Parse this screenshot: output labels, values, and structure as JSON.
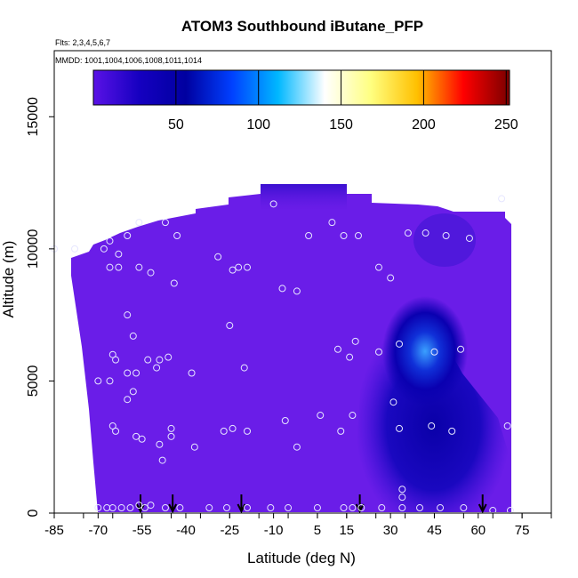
{
  "chart_data": {
    "type": "heatmap",
    "title": "ATOM3 Southbound iButane_PFP",
    "notes": [
      "Flts: 2,3,4,5,6,7",
      "MMDD: 1001,1004,1006,1008,1011,1014"
    ],
    "xlabel": "Latitude (deg N)",
    "ylabel": "Altitude (m)",
    "xlim": [
      -85,
      85
    ],
    "ylim": [
      0,
      17500
    ],
    "x_ticks": [
      -85,
      -70,
      -55,
      -40,
      -25,
      -10,
      5,
      15,
      30,
      45,
      60,
      75
    ],
    "y_ticks": [
      0,
      5000,
      10000,
      15000
    ],
    "colorbar": {
      "range": [
        0,
        252
      ],
      "ticks": [
        50,
        100,
        150,
        200,
        250
      ],
      "colors": [
        "#5a12e6",
        "#1500c0",
        "#0000a0",
        "#0040ff",
        "#00b8ff",
        "#ffffff",
        "#ffff80",
        "#ffc000",
        "#ff0000",
        "#7a0000"
      ]
    },
    "field_color": "#6a1de8",
    "legend_placement": "top",
    "flight_latitudes": [
      -55.5,
      -44.5,
      -21,
      19.5,
      61.5
    ],
    "samples": [
      [
        -70,
        200
      ],
      [
        -67,
        200
      ],
      [
        -65,
        200
      ],
      [
        -62,
        200
      ],
      [
        -59,
        200
      ],
      [
        -56,
        300
      ],
      [
        -52,
        300
      ],
      [
        -47,
        200
      ],
      [
        -42,
        200
      ],
      [
        -32,
        200
      ],
      [
        -26,
        200
      ],
      [
        -19,
        200
      ],
      [
        -11,
        200
      ],
      [
        -5,
        200
      ],
      [
        5,
        200
      ],
      [
        14,
        200
      ],
      [
        17,
        200
      ],
      [
        20,
        200
      ],
      [
        27,
        200
      ],
      [
        34,
        200
      ],
      [
        40,
        200
      ],
      [
        47,
        200
      ],
      [
        55,
        200
      ],
      [
        65,
        100
      ],
      [
        71,
        100
      ],
      [
        -54,
        200
      ],
      [
        34,
        600
      ],
      [
        34,
        900
      ],
      [
        -85,
        10000
      ],
      [
        -78,
        10000
      ],
      [
        -68,
        10000
      ],
      [
        -66,
        10300
      ],
      [
        -63,
        9800
      ],
      [
        -60,
        10500
      ],
      [
        -56,
        11000
      ],
      [
        -47,
        11000
      ],
      [
        -43,
        10500
      ],
      [
        -29,
        9700
      ],
      [
        -19,
        9300
      ],
      [
        -10,
        11700
      ],
      [
        2,
        10500
      ],
      [
        10,
        11000
      ],
      [
        14,
        10500
      ],
      [
        19,
        10500
      ],
      [
        26,
        9300
      ],
      [
        30,
        8900
      ],
      [
        36,
        10600
      ],
      [
        42,
        10600
      ],
      [
        49,
        10500
      ],
      [
        57,
        10400
      ],
      [
        68,
        11900
      ],
      [
        -66,
        9300
      ],
      [
        -63,
        9300
      ],
      [
        -56,
        9300
      ],
      [
        -52,
        9100
      ],
      [
        -44,
        8700
      ],
      [
        -24,
        9200
      ],
      [
        -22,
        9300
      ],
      [
        -7,
        8500
      ],
      [
        -2,
        8400
      ],
      [
        -60,
        7500
      ],
      [
        -58,
        6700
      ],
      [
        -65,
        6000
      ],
      [
        -64,
        5800
      ],
      [
        -60,
        5300
      ],
      [
        -57,
        5300
      ],
      [
        -53,
        5800
      ],
      [
        -50,
        5500
      ],
      [
        -49,
        5800
      ],
      [
        -46,
        5900
      ],
      [
        -38,
        5300
      ],
      [
        -25,
        7100
      ],
      [
        -20,
        5500
      ],
      [
        12,
        6200
      ],
      [
        16,
        5900
      ],
      [
        18,
        6500
      ],
      [
        26,
        6100
      ],
      [
        33,
        6400
      ],
      [
        45,
        6100
      ],
      [
        54,
        6200
      ],
      [
        -70,
        5000
      ],
      [
        -66,
        5000
      ],
      [
        -60,
        4300
      ],
      [
        -58,
        4600
      ],
      [
        -65,
        3300
      ],
      [
        -64,
        3100
      ],
      [
        -57,
        2900
      ],
      [
        -55,
        2800
      ],
      [
        -49,
        2600
      ],
      [
        -48,
        2000
      ],
      [
        -45,
        3200
      ],
      [
        -45,
        2900
      ],
      [
        -37,
        2500
      ],
      [
        -27,
        3100
      ],
      [
        -24,
        3200
      ],
      [
        -19,
        3100
      ],
      [
        -6,
        3500
      ],
      [
        -2,
        2500
      ],
      [
        6,
        3700
      ],
      [
        13,
        3100
      ],
      [
        17,
        3700
      ],
      [
        31,
        4200
      ],
      [
        33,
        3200
      ],
      [
        44,
        3300
      ],
      [
        51,
        3100
      ],
      [
        70,
        3300
      ]
    ]
  }
}
